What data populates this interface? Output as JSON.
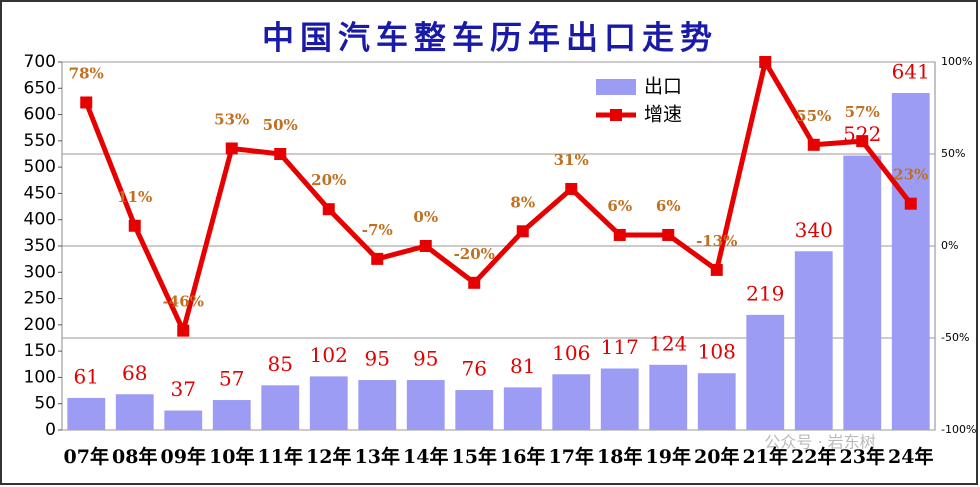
{
  "chart_data": {
    "type": "bar_line",
    "title": "中国汽车整车历年出口走势",
    "categories": [
      "07年",
      "08年",
      "09年",
      "10年",
      "11年",
      "12年",
      "13年",
      "14年",
      "15年",
      "16年",
      "17年",
      "18年",
      "19年",
      "20年",
      "21年",
      "22年",
      "23年",
      "24年"
    ],
    "series": [
      {
        "name": "出口",
        "type": "bar",
        "color": "#9c9cf4",
        "values": [
          61,
          68,
          37,
          57,
          85,
          102,
          95,
          95,
          76,
          81,
          106,
          117,
          124,
          108,
          219,
          340,
          522,
          641
        ]
      },
      {
        "name": "增速",
        "type": "line",
        "axis": "y2",
        "color": "#e60000",
        "values": [
          78,
          11,
          -46,
          53,
          50,
          20,
          -7,
          0,
          -20,
          8,
          31,
          6,
          6,
          -13,
          100,
          55,
          57,
          23
        ],
        "value_labels": [
          "78%",
          "11%",
          "-46%",
          "53%",
          "50%",
          "20%",
          "-7%",
          "0%",
          "-20%",
          "8%",
          "31%",
          "6%",
          "6%",
          "-13%",
          null,
          "55%",
          "57%",
          "23%"
        ]
      }
    ],
    "ylim": [
      0,
      700
    ],
    "yticks": [
      0,
      50,
      100,
      150,
      200,
      250,
      300,
      350,
      400,
      450,
      500,
      550,
      600,
      650,
      700
    ],
    "y2lim": [
      -100,
      100
    ],
    "y2ticks": [
      {
        "value": -100,
        "label": "-100%"
      },
      {
        "value": -50,
        "label": "-50%"
      },
      {
        "value": 0,
        "label": "0%"
      },
      {
        "value": 50,
        "label": "50%"
      },
      {
        "value": 100,
        "label": "100%"
      }
    ],
    "grid": true,
    "legend": "top-right",
    "watermark": "公众号 · 岩东树"
  }
}
